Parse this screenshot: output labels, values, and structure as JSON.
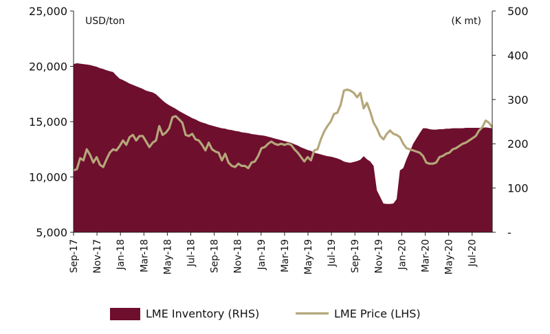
{
  "chart_data": {
    "type": "area",
    "x_categories": [
      "Sep-17",
      "Nov-17",
      "Jan-18",
      "Mar-18",
      "May-18",
      "Jul-18",
      "Sep-18",
      "Nov-18",
      "Jan-19",
      "Mar-19",
      "May-19",
      "Jul-19",
      "Sep-19",
      "Nov-19",
      "Jan-20",
      "Mar-20",
      "May-20",
      "Jul-20"
    ],
    "y_left": {
      "label": "USD/ton",
      "ticks": [
        "5,000",
        "10,000",
        "15,000",
        "20,000",
        "25,000"
      ],
      "min": 5000,
      "max": 25000
    },
    "y_right": {
      "label": "(K mt)",
      "ticks": [
        "-",
        "100",
        "200",
        "300",
        "400",
        "500"
      ],
      "min": 0,
      "max": 500
    },
    "series": [
      {
        "name": "LME Inventory (RHS)",
        "type": "area",
        "axis": "right",
        "color": "#6e0f2e",
        "values": [
          [
            0,
            380
          ],
          [
            1,
            382
          ],
          [
            2,
            381
          ],
          [
            3,
            380
          ],
          [
            4,
            379
          ],
          [
            5,
            378
          ],
          [
            6,
            376
          ],
          [
            7,
            374
          ],
          [
            8,
            371
          ],
          [
            9,
            369
          ],
          [
            10,
            366
          ],
          [
            11,
            364
          ],
          [
            12,
            362
          ],
          [
            13,
            354
          ],
          [
            14,
            347
          ],
          [
            15,
            344
          ],
          [
            16,
            340
          ],
          [
            17,
            336
          ],
          [
            18,
            333
          ],
          [
            19,
            330
          ],
          [
            20,
            327
          ],
          [
            21,
            324
          ],
          [
            22,
            320
          ],
          [
            23,
            318
          ],
          [
            24,
            316
          ],
          [
            25,
            312
          ],
          [
            26,
            305
          ],
          [
            27,
            298
          ],
          [
            28,
            292
          ],
          [
            29,
            287
          ],
          [
            30,
            283
          ],
          [
            31,
            279
          ],
          [
            32,
            274
          ],
          [
            33,
            270
          ],
          [
            34,
            266
          ],
          [
            35,
            262
          ],
          [
            36,
            258
          ],
          [
            37,
            255
          ],
          [
            38,
            251
          ],
          [
            39,
            248
          ],
          [
            40,
            246
          ],
          [
            41,
            243
          ],
          [
            42,
            241
          ],
          [
            43,
            239
          ],
          [
            44,
            237
          ],
          [
            45,
            235
          ],
          [
            46,
            234
          ],
          [
            47,
            232
          ],
          [
            48,
            231
          ],
          [
            49,
            229
          ],
          [
            50,
            228
          ],
          [
            51,
            226
          ],
          [
            52,
            225
          ],
          [
            53,
            224
          ],
          [
            54,
            222
          ],
          [
            55,
            221
          ],
          [
            56,
            220
          ],
          [
            57,
            219
          ],
          [
            58,
            218
          ],
          [
            59,
            216
          ],
          [
            60,
            214
          ],
          [
            61,
            212
          ],
          [
            62,
            210
          ],
          [
            63,
            208
          ],
          [
            64,
            206
          ],
          [
            65,
            204
          ],
          [
            66,
            202
          ],
          [
            67,
            199
          ],
          [
            68,
            196
          ],
          [
            69,
            192
          ],
          [
            70,
            189
          ],
          [
            71,
            186
          ],
          [
            72,
            184
          ],
          [
            73,
            180
          ],
          [
            74,
            178
          ],
          [
            75,
            176
          ],
          [
            76,
            174
          ],
          [
            77,
            172
          ],
          [
            78,
            171
          ],
          [
            79,
            169
          ],
          [
            80,
            167
          ],
          [
            81,
            164
          ],
          [
            82,
            160
          ],
          [
            83,
            158
          ],
          [
            84,
            157
          ],
          [
            85,
            159
          ],
          [
            86,
            161
          ],
          [
            87,
            164
          ],
          [
            88,
            172
          ],
          [
            89,
            165
          ],
          [
            90,
            160
          ],
          [
            91,
            150
          ],
          [
            92,
            95
          ],
          [
            93,
            80
          ],
          [
            94,
            65
          ],
          [
            95,
            64
          ],
          [
            96,
            64
          ],
          [
            97,
            65
          ],
          [
            98,
            75
          ],
          [
            99,
            140
          ],
          [
            100,
            145
          ],
          [
            101,
            165
          ],
          [
            102,
            182
          ],
          [
            103,
            200
          ],
          [
            104,
            212
          ],
          [
            105,
            224
          ],
          [
            106,
            235
          ],
          [
            107,
            235
          ],
          [
            108,
            233
          ],
          [
            109,
            232
          ],
          [
            110,
            232
          ],
          [
            111,
            233
          ],
          [
            112,
            233
          ],
          [
            113,
            234
          ],
          [
            114,
            234
          ],
          [
            115,
            235
          ],
          [
            116,
            235
          ],
          [
            117,
            235
          ],
          [
            118,
            235
          ],
          [
            119,
            236
          ],
          [
            120,
            236
          ],
          [
            121,
            236
          ],
          [
            122,
            236
          ],
          [
            123,
            236
          ],
          [
            124,
            236
          ],
          [
            125,
            237
          ],
          [
            126,
            236
          ],
          [
            127,
            235
          ]
        ]
      },
      {
        "name": "LME Price (LHS)",
        "type": "line",
        "axis": "left",
        "color": "#b5a77a",
        "values": [
          [
            0,
            10600
          ],
          [
            1,
            10700
          ],
          [
            2,
            11700
          ],
          [
            3,
            11500
          ],
          [
            4,
            12500
          ],
          [
            5,
            12000
          ],
          [
            6,
            11300
          ],
          [
            7,
            11800
          ],
          [
            8,
            11100
          ],
          [
            9,
            10900
          ],
          [
            10,
            11600
          ],
          [
            11,
            12200
          ],
          [
            12,
            12500
          ],
          [
            13,
            12400
          ],
          [
            14,
            12800
          ],
          [
            15,
            13300
          ],
          [
            16,
            12900
          ],
          [
            17,
            13600
          ],
          [
            18,
            13800
          ],
          [
            19,
            13300
          ],
          [
            20,
            13700
          ],
          [
            21,
            13700
          ],
          [
            22,
            13200
          ],
          [
            23,
            12700
          ],
          [
            24,
            13100
          ],
          [
            25,
            13300
          ],
          [
            26,
            14600
          ],
          [
            27,
            13800
          ],
          [
            28,
            14000
          ],
          [
            29,
            14400
          ],
          [
            30,
            15400
          ],
          [
            31,
            15500
          ],
          [
            32,
            15200
          ],
          [
            33,
            14900
          ],
          [
            34,
            13800
          ],
          [
            35,
            13700
          ],
          [
            36,
            13900
          ],
          [
            37,
            13400
          ],
          [
            38,
            13300
          ],
          [
            39,
            12900
          ],
          [
            40,
            12400
          ],
          [
            41,
            13100
          ],
          [
            42,
            12500
          ],
          [
            43,
            12300
          ],
          [
            44,
            12200
          ],
          [
            45,
            11500
          ],
          [
            46,
            12100
          ],
          [
            47,
            11300
          ],
          [
            48,
            11000
          ],
          [
            49,
            10900
          ],
          [
            50,
            11200
          ],
          [
            51,
            11000
          ],
          [
            52,
            11000
          ],
          [
            53,
            10800
          ],
          [
            54,
            11300
          ],
          [
            55,
            11400
          ],
          [
            56,
            11900
          ],
          [
            57,
            12600
          ],
          [
            58,
            12700
          ],
          [
            59,
            13000
          ],
          [
            60,
            13200
          ],
          [
            61,
            13000
          ],
          [
            62,
            12900
          ],
          [
            63,
            13000
          ],
          [
            64,
            12900
          ],
          [
            65,
            13000
          ],
          [
            66,
            12900
          ],
          [
            67,
            12500
          ],
          [
            68,
            12200
          ],
          [
            69,
            11800
          ],
          [
            70,
            11400
          ],
          [
            71,
            11800
          ],
          [
            72,
            11500
          ],
          [
            73,
            12400
          ],
          [
            74,
            12500
          ],
          [
            75,
            13400
          ],
          [
            76,
            14100
          ],
          [
            77,
            14600
          ],
          [
            78,
            15000
          ],
          [
            79,
            15700
          ],
          [
            80,
            15800
          ],
          [
            81,
            16500
          ],
          [
            82,
            17800
          ],
          [
            83,
            17900
          ],
          [
            84,
            17800
          ],
          [
            85,
            17600
          ],
          [
            86,
            17200
          ],
          [
            87,
            17600
          ],
          [
            88,
            16200
          ],
          [
            89,
            16700
          ],
          [
            90,
            15900
          ],
          [
            91,
            14900
          ],
          [
            92,
            14400
          ],
          [
            93,
            13700
          ],
          [
            94,
            13400
          ],
          [
            95,
            13900
          ],
          [
            96,
            14200
          ],
          [
            97,
            13900
          ],
          [
            98,
            13800
          ],
          [
            99,
            13600
          ],
          [
            100,
            13000
          ],
          [
            101,
            12600
          ],
          [
            102,
            12500
          ],
          [
            103,
            12400
          ],
          [
            104,
            12300
          ],
          [
            105,
            12200
          ],
          [
            106,
            11900
          ],
          [
            107,
            11300
          ],
          [
            108,
            11200
          ],
          [
            109,
            11200
          ],
          [
            110,
            11300
          ],
          [
            111,
            11800
          ],
          [
            112,
            11900
          ],
          [
            113,
            12100
          ],
          [
            114,
            12200
          ],
          [
            115,
            12500
          ],
          [
            116,
            12600
          ],
          [
            117,
            12800
          ],
          [
            118,
            13000
          ],
          [
            119,
            13100
          ],
          [
            120,
            13300
          ],
          [
            121,
            13500
          ],
          [
            122,
            13700
          ],
          [
            123,
            14200
          ],
          [
            124,
            14500
          ],
          [
            125,
            15100
          ],
          [
            126,
            14900
          ],
          [
            127,
            14500
          ]
        ]
      }
    ],
    "grid": false,
    "legend_position": "bottom"
  }
}
